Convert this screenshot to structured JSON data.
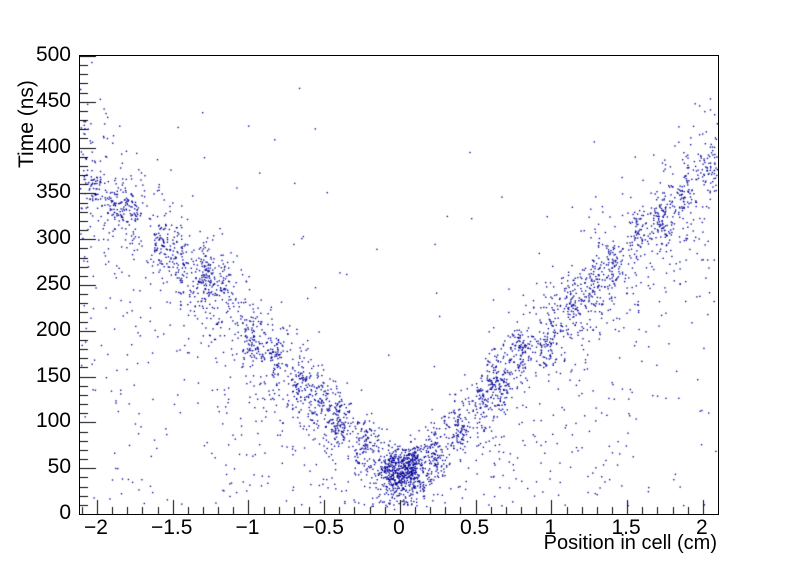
{
  "chart_data": {
    "type": "scatter",
    "title": "",
    "xlabel": "Position in cell (cm)",
    "ylabel": "Time (ns)",
    "xlim": [
      -2.112,
      2.1
    ],
    "ylim": [
      0,
      500
    ],
    "grid": false,
    "legend": false,
    "frame_color": "#000000",
    "marker_color": "#000099",
    "marker_size_px": 1.35,
    "x_axis": {
      "ticks": [
        {
          "v": -2,
          "label": "−2"
        },
        {
          "v": -1.5,
          "label": "−1.5"
        },
        {
          "v": -1,
          "label": "−1"
        },
        {
          "v": -0.5,
          "label": "−0.5"
        },
        {
          "v": 0,
          "label": "0"
        },
        {
          "v": 0.5,
          "label": "0.5"
        },
        {
          "v": 1,
          "label": "1"
        },
        {
          "v": 1.5,
          "label": "1.5"
        },
        {
          "v": 2,
          "label": "2"
        }
      ],
      "minor_step": 0.1,
      "minor_range": [
        -2.1,
        2.1
      ],
      "major_tick_len": 14,
      "minor_tick_len": 7
    },
    "y_axis": {
      "ticks": [
        {
          "v": 0,
          "label": "0"
        },
        {
          "v": 50,
          "label": "50"
        },
        {
          "v": 100,
          "label": "100"
        },
        {
          "v": 150,
          "label": "150"
        },
        {
          "v": 200,
          "label": "200"
        },
        {
          "v": 250,
          "label": "250"
        },
        {
          "v": 300,
          "label": "300"
        },
        {
          "v": 350,
          "label": "350"
        },
        {
          "v": 400,
          "label": "400"
        },
        {
          "v": 450,
          "label": "450"
        },
        {
          "v": 500,
          "label": "500"
        }
      ],
      "minor_step": 10,
      "minor_range": [
        0,
        500
      ],
      "major_tick_len": 16,
      "minor_tick_len": 8
    },
    "content_description": "V-shaped drift-time vs position distribution: time rises roughly linearly with |position|, from ~45 ns at 0 cm to ~380 ns at |2.1| cm, with clumpy clusters along both arms, a dense blob at the cell center, and sparse background hits below the arms",
    "generator": {
      "seed": 987241,
      "v_curve": {
        "t0": 35,
        "slope_ns_per_cm": 165
      },
      "diffuse_band": {
        "count": 1500,
        "sigma_base_ns": 18,
        "sigma_slope_ns_per_cm": 13
      },
      "arm_clusters": {
        "first_x": 0.08,
        "spacing_x": 0.15,
        "per_arm": 15,
        "sigma_x": 0.035,
        "sigma_t": 14,
        "center_jitter_x": 0.015,
        "center_jitter_t": 10,
        "points_mean": 66
      },
      "central_blob": {
        "x_mean": 0.02,
        "x_sigma": 0.075,
        "t_mean": 47,
        "t_sigma": 13,
        "count": 380
      },
      "background_below_band": {
        "count": 520,
        "t_min": 8,
        "gap_below_curve": 18
      },
      "background_uniform": {
        "count": 95,
        "t_min": 8,
        "t_max": 465
      },
      "t_clip": [
        1.5,
        498
      ]
    }
  }
}
